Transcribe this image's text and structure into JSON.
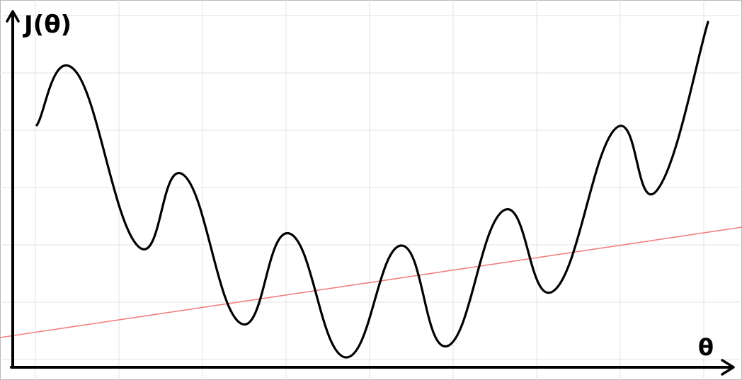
{
  "diagram": {
    "y_axis_label": "J(θ)",
    "x_axis_label": "θ",
    "colors": {
      "background": "#ffffff",
      "grid": "#e3e3e3",
      "curve": "#000000",
      "line": "#f08080",
      "axes": "#000000"
    }
  }
}
